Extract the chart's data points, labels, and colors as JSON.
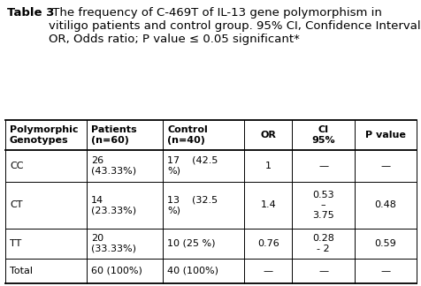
{
  "title_bold": "Table 3",
  "title_rest": " The frequency of C-469T of IL-13 gene polymorphism in\nvitiligo patients and control group. 95% CI, Confidence Interval.\nOR, Odds ratio; P value ≤ 0.05 significant*",
  "col_headers": [
    "Polymorphic\nGenotypes",
    "Patients\n(n=60)",
    "Control\n(n=40)",
    "OR",
    "CI\n95%",
    "P value"
  ],
  "rows": [
    [
      "CC",
      "26\n(43.33%)",
      "17    (42.5\n%)",
      "1",
      "—",
      "—"
    ],
    [
      "CT",
      "14\n(23.33%)",
      "13    (32.5\n%)",
      "1.4",
      "0.53\n–\n3.75",
      "0.48"
    ],
    [
      "TT",
      "20\n(33.33%)",
      "10 (25 %)",
      "0.76",
      "0.28\n- 2",
      "0.59"
    ],
    [
      "Total",
      "60 (100%)",
      "40 (100%)",
      "—",
      "—",
      "—"
    ]
  ],
  "col_widths_rel": [
    1.7,
    1.6,
    1.7,
    1.0,
    1.3,
    1.3
  ],
  "background_color": "#ffffff",
  "text_color": "#000000",
  "font_size": 8.0,
  "header_font_size": 8.0,
  "title_font_size": 9.5
}
